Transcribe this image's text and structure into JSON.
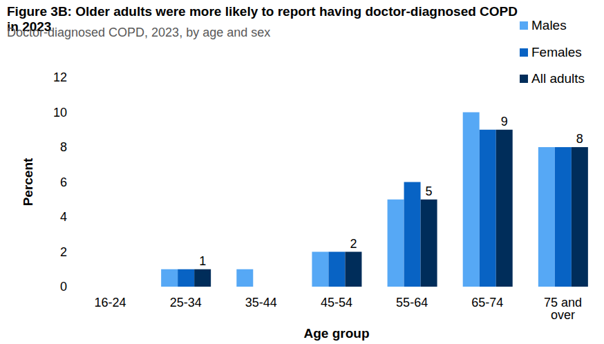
{
  "chart_data": {
    "type": "bar",
    "title": "Figure 3B: Older adults were more likely to report having doctor-diagnosed COPD in 2023",
    "subtitle": "Doctor-diagnosed COPD, 2023, by age and sex",
    "x_label": "Age group",
    "y_label": "Percent",
    "categories": [
      "16-24",
      "25-34",
      "35-44",
      "45-54",
      "55-64",
      "65-74",
      "75 and over"
    ],
    "series": [
      {
        "name": "Males",
        "color": "#56a8f5",
        "values": [
          0,
          1,
          1,
          2,
          5,
          10,
          8
        ]
      },
      {
        "name": "Females",
        "color": "#0863c4",
        "values": [
          0,
          1,
          0,
          2,
          6,
          9,
          8
        ]
      },
      {
        "name": "All adults",
        "color": "#002d5a",
        "values": [
          0,
          1,
          0,
          2,
          5,
          9,
          8
        ],
        "value_labels": [
          null,
          "1",
          null,
          "2",
          "5",
          "9",
          "8"
        ]
      }
    ],
    "ylim": [
      0,
      12
    ],
    "yticks": [
      0,
      2,
      4,
      6,
      8,
      10,
      12
    ],
    "grid": false,
    "legend": "top-right"
  }
}
